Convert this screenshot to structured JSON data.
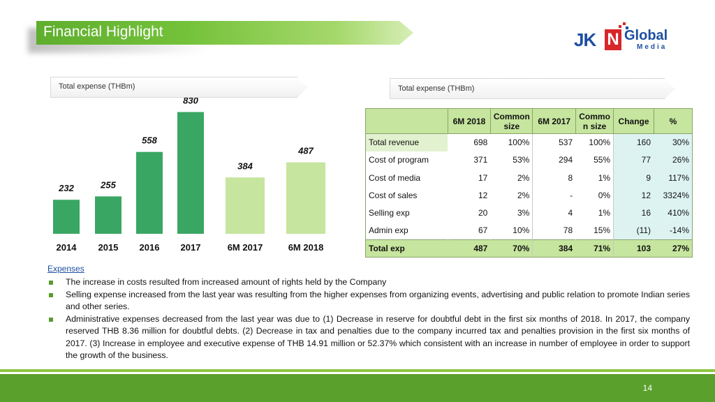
{
  "title": "Financial Highlight",
  "logo": {
    "brand": "JKN",
    "brand_n": "N",
    "brand_jk": "JK",
    "global": "Global",
    "media": "Media"
  },
  "left_section": {
    "header": "Total expense (THBm)"
  },
  "right_section": {
    "header": "Total expense (THBm)"
  },
  "chart_data": {
    "type": "bar",
    "categories": [
      "2014",
      "2015",
      "2016",
      "2017",
      "6M 2017",
      "6M 2018"
    ],
    "values": [
      232,
      255,
      558,
      830,
      384,
      487
    ],
    "bar_colors": [
      "#3aa664",
      "#3aa664",
      "#3aa664",
      "#3aa664",
      "#c6e59e",
      "#c6e59e"
    ],
    "ylim": [
      0,
      880
    ]
  },
  "table": {
    "headers": [
      "",
      "6M 2018",
      "Common size",
      "6M 2017",
      "Commo n size",
      "Change",
      "%"
    ],
    "rows": [
      [
        "Total revenue",
        "698",
        "100%",
        "537",
        "100%",
        "160",
        "30%"
      ],
      [
        "Cost of program",
        "371",
        "53%",
        "294",
        "55%",
        "77",
        "26%"
      ],
      [
        "Cost of media",
        "17",
        "2%",
        "8",
        "1%",
        "9",
        "117%"
      ],
      [
        "Cost of sales",
        "12",
        "2%",
        "-",
        "0%",
        "12",
        "3324%"
      ],
      [
        "Selling exp",
        "20",
        "3%",
        "4",
        "1%",
        "16",
        "410%"
      ],
      [
        "Admin exp",
        "67",
        "10%",
        "78",
        "15%",
        "(11)",
        "-14%"
      ]
    ],
    "total": [
      "Total exp",
      "487",
      "70%",
      "384",
      "71%",
      "103",
      "27%"
    ]
  },
  "notes": {
    "label": "Expenses",
    "bullets": [
      "The increase in costs resulted from increased amount of rights held by the Company",
      "Selling expense increased from the last year was resulting from the higher expenses from organizing events, advertising and public relation to promote Indian series and other series.",
      "Administrative expenses decreased from the last year was due to (1) Decrease in reserve for doubtful debt in the first six months of 2018.  In 2017, the company reserved THB 8.36 million for doubtful debts. (2) Decrease in tax and penalties due to the company incurred tax and penalties provision in the first six months of 2017. (3) Increase in employee and executive expense of THB 14.91 million or 52.37% which consistent with an increase in number of employee in order to support the growth of the business."
    ]
  },
  "page_number": "14"
}
